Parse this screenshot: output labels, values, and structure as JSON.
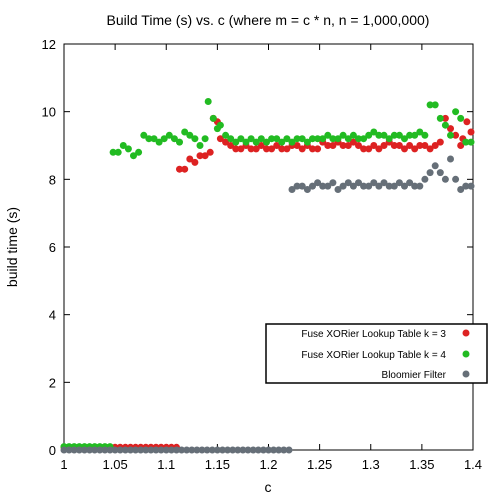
{
  "chart_data": {
    "type": "scatter",
    "title": "Build Time (s) vs. c (where m = c * n, n = 1,000,000)",
    "xlabel": "c",
    "ylabel": "build time (s)",
    "xlim": [
      1,
      1.4
    ],
    "ylim": [
      0,
      12
    ],
    "xticks": [
      "1",
      "1.05",
      "1.1",
      "1.15",
      "1.2",
      "1.25",
      "1.3",
      "1.35",
      "1.4"
    ],
    "yticks": [
      "0",
      "2",
      "4",
      "6",
      "8",
      "10",
      "12"
    ],
    "grid": false,
    "legend_position": "bottom-right",
    "series": [
      {
        "name": "Fuse XORier Lookup Table k = 3",
        "color": "#dd2222",
        "points": [
          [
            1.0,
            0.08
          ],
          [
            1.005,
            0.08
          ],
          [
            1.01,
            0.08
          ],
          [
            1.015,
            0.08
          ],
          [
            1.02,
            0.08
          ],
          [
            1.025,
            0.08
          ],
          [
            1.03,
            0.08
          ],
          [
            1.035,
            0.08
          ],
          [
            1.04,
            0.08
          ],
          [
            1.045,
            0.08
          ],
          [
            1.05,
            0.08
          ],
          [
            1.055,
            0.08
          ],
          [
            1.06,
            0.08
          ],
          [
            1.065,
            0.08
          ],
          [
            1.07,
            0.08
          ],
          [
            1.075,
            0.08
          ],
          [
            1.08,
            0.08
          ],
          [
            1.085,
            0.08
          ],
          [
            1.09,
            0.08
          ],
          [
            1.095,
            0.08
          ],
          [
            1.1,
            0.08
          ],
          [
            1.105,
            0.08
          ],
          [
            1.11,
            0.08
          ],
          [
            1.113,
            8.3
          ],
          [
            1.118,
            8.3
          ],
          [
            1.123,
            8.6
          ],
          [
            1.128,
            8.5
          ],
          [
            1.133,
            8.7
          ],
          [
            1.138,
            8.7
          ],
          [
            1.143,
            8.8
          ],
          [
            1.146,
            9.8
          ],
          [
            1.15,
            9.7
          ],
          [
            1.153,
            9.2
          ],
          [
            1.158,
            9.1
          ],
          [
            1.163,
            9.0
          ],
          [
            1.168,
            8.9
          ],
          [
            1.173,
            8.9
          ],
          [
            1.178,
            9.0
          ],
          [
            1.183,
            8.9
          ],
          [
            1.188,
            8.9
          ],
          [
            1.193,
            9.0
          ],
          [
            1.198,
            8.9
          ],
          [
            1.203,
            8.9
          ],
          [
            1.208,
            9.0
          ],
          [
            1.213,
            8.9
          ],
          [
            1.218,
            8.9
          ],
          [
            1.223,
            9.0
          ],
          [
            1.228,
            9.0
          ],
          [
            1.233,
            8.9
          ],
          [
            1.238,
            9.0
          ],
          [
            1.243,
            8.9
          ],
          [
            1.248,
            8.9
          ],
          [
            1.253,
            9.1
          ],
          [
            1.258,
            9.0
          ],
          [
            1.263,
            9.0
          ],
          [
            1.268,
            9.1
          ],
          [
            1.273,
            9.0
          ],
          [
            1.278,
            9.0
          ],
          [
            1.283,
            9.1
          ],
          [
            1.288,
            9.0
          ],
          [
            1.293,
            8.9
          ],
          [
            1.298,
            8.9
          ],
          [
            1.303,
            9.0
          ],
          [
            1.308,
            8.9
          ],
          [
            1.313,
            9.0
          ],
          [
            1.318,
            9.1
          ],
          [
            1.323,
            9.0
          ],
          [
            1.328,
            9.0
          ],
          [
            1.333,
            8.9
          ],
          [
            1.338,
            9.0
          ],
          [
            1.343,
            8.9
          ],
          [
            1.348,
            9.0
          ],
          [
            1.353,
            9.0
          ],
          [
            1.358,
            8.9
          ],
          [
            1.363,
            9.0
          ],
          [
            1.368,
            9.1
          ],
          [
            1.373,
            9.8
          ],
          [
            1.378,
            9.5
          ],
          [
            1.383,
            9.3
          ],
          [
            1.388,
            9.0
          ],
          [
            1.39,
            9.2
          ],
          [
            1.394,
            9.7
          ],
          [
            1.398,
            9.4
          ]
        ]
      },
      {
        "name": "Fuse XORier Lookup Table k = 4",
        "color": "#22bb22",
        "points": [
          [
            1.0,
            0.1
          ],
          [
            1.005,
            0.1
          ],
          [
            1.01,
            0.1
          ],
          [
            1.015,
            0.1
          ],
          [
            1.02,
            0.1
          ],
          [
            1.025,
            0.1
          ],
          [
            1.03,
            0.1
          ],
          [
            1.035,
            0.1
          ],
          [
            1.04,
            0.1
          ],
          [
            1.045,
            0.1
          ],
          [
            1.048,
            8.8
          ],
          [
            1.053,
            8.8
          ],
          [
            1.058,
            9.0
          ],
          [
            1.063,
            8.9
          ],
          [
            1.068,
            8.7
          ],
          [
            1.073,
            8.8
          ],
          [
            1.078,
            9.3
          ],
          [
            1.083,
            9.2
          ],
          [
            1.088,
            9.2
          ],
          [
            1.093,
            9.1
          ],
          [
            1.098,
            9.2
          ],
          [
            1.103,
            9.3
          ],
          [
            1.108,
            9.2
          ],
          [
            1.113,
            9.1
          ],
          [
            1.118,
            9.4
          ],
          [
            1.123,
            9.3
          ],
          [
            1.128,
            9.2
          ],
          [
            1.133,
            9.0
          ],
          [
            1.138,
            9.2
          ],
          [
            1.141,
            10.3
          ],
          [
            1.146,
            9.8
          ],
          [
            1.15,
            9.5
          ],
          [
            1.153,
            9.6
          ],
          [
            1.158,
            9.3
          ],
          [
            1.163,
            9.2
          ],
          [
            1.168,
            9.1
          ],
          [
            1.173,
            9.2
          ],
          [
            1.178,
            9.1
          ],
          [
            1.183,
            9.2
          ],
          [
            1.188,
            9.1
          ],
          [
            1.193,
            9.2
          ],
          [
            1.198,
            9.1
          ],
          [
            1.203,
            9.2
          ],
          [
            1.208,
            9.2
          ],
          [
            1.213,
            9.1
          ],
          [
            1.218,
            9.2
          ],
          [
            1.223,
            9.1
          ],
          [
            1.228,
            9.2
          ],
          [
            1.233,
            9.2
          ],
          [
            1.238,
            9.1
          ],
          [
            1.243,
            9.2
          ],
          [
            1.248,
            9.2
          ],
          [
            1.253,
            9.2
          ],
          [
            1.258,
            9.3
          ],
          [
            1.263,
            9.2
          ],
          [
            1.268,
            9.2
          ],
          [
            1.273,
            9.3
          ],
          [
            1.278,
            9.2
          ],
          [
            1.283,
            9.3
          ],
          [
            1.288,
            9.2
          ],
          [
            1.293,
            9.2
          ],
          [
            1.298,
            9.3
          ],
          [
            1.303,
            9.4
          ],
          [
            1.308,
            9.3
          ],
          [
            1.313,
            9.3
          ],
          [
            1.318,
            9.2
          ],
          [
            1.323,
            9.3
          ],
          [
            1.328,
            9.3
          ],
          [
            1.333,
            9.2
          ],
          [
            1.338,
            9.3
          ],
          [
            1.343,
            9.3
          ],
          [
            1.348,
            9.4
          ],
          [
            1.353,
            9.3
          ],
          [
            1.358,
            10.2
          ],
          [
            1.363,
            10.2
          ],
          [
            1.368,
            9.8
          ],
          [
            1.373,
            9.6
          ],
          [
            1.378,
            9.3
          ],
          [
            1.383,
            10.0
          ],
          [
            1.388,
            9.8
          ],
          [
            1.393,
            9.1
          ],
          [
            1.398,
            9.1
          ]
        ]
      },
      {
        "name": "Bloomier Filter",
        "color": "#666f78",
        "points": [
          [
            1.0,
            0.0
          ],
          [
            1.005,
            0.0
          ],
          [
            1.01,
            0.0
          ],
          [
            1.015,
            0.0
          ],
          [
            1.02,
            0.0
          ],
          [
            1.025,
            0.0
          ],
          [
            1.03,
            0.0
          ],
          [
            1.035,
            0.0
          ],
          [
            1.04,
            0.0
          ],
          [
            1.045,
            0.0
          ],
          [
            1.05,
            0.0
          ],
          [
            1.055,
            0.0
          ],
          [
            1.06,
            0.0
          ],
          [
            1.065,
            0.0
          ],
          [
            1.07,
            0.0
          ],
          [
            1.075,
            0.0
          ],
          [
            1.08,
            0.0
          ],
          [
            1.085,
            0.0
          ],
          [
            1.09,
            0.0
          ],
          [
            1.095,
            0.0
          ],
          [
            1.1,
            0.0
          ],
          [
            1.105,
            0.0
          ],
          [
            1.11,
            0.0
          ],
          [
            1.115,
            0.0
          ],
          [
            1.12,
            0.0
          ],
          [
            1.125,
            0.0
          ],
          [
            1.13,
            0.0
          ],
          [
            1.135,
            0.0
          ],
          [
            1.14,
            0.0
          ],
          [
            1.145,
            0.0
          ],
          [
            1.15,
            0.0
          ],
          [
            1.155,
            0.0
          ],
          [
            1.16,
            0.0
          ],
          [
            1.165,
            0.0
          ],
          [
            1.17,
            0.0
          ],
          [
            1.175,
            0.0
          ],
          [
            1.18,
            0.0
          ],
          [
            1.185,
            0.0
          ],
          [
            1.19,
            0.0
          ],
          [
            1.195,
            0.0
          ],
          [
            1.2,
            0.0
          ],
          [
            1.205,
            0.0
          ],
          [
            1.21,
            0.0
          ],
          [
            1.215,
            0.0
          ],
          [
            1.22,
            0.0
          ],
          [
            1.223,
            7.7
          ],
          [
            1.228,
            7.8
          ],
          [
            1.233,
            7.8
          ],
          [
            1.238,
            7.7
          ],
          [
            1.243,
            7.8
          ],
          [
            1.248,
            7.9
          ],
          [
            1.253,
            7.8
          ],
          [
            1.258,
            7.8
          ],
          [
            1.263,
            7.9
          ],
          [
            1.268,
            7.7
          ],
          [
            1.273,
            7.8
          ],
          [
            1.278,
            7.9
          ],
          [
            1.283,
            7.8
          ],
          [
            1.288,
            7.9
          ],
          [
            1.293,
            7.8
          ],
          [
            1.298,
            7.8
          ],
          [
            1.303,
            7.9
          ],
          [
            1.308,
            7.8
          ],
          [
            1.313,
            7.9
          ],
          [
            1.318,
            7.8
          ],
          [
            1.323,
            7.8
          ],
          [
            1.328,
            7.9
          ],
          [
            1.333,
            7.8
          ],
          [
            1.338,
            7.9
          ],
          [
            1.343,
            7.8
          ],
          [
            1.348,
            7.8
          ],
          [
            1.353,
            8.0
          ],
          [
            1.358,
            8.2
          ],
          [
            1.363,
            8.4
          ],
          [
            1.368,
            8.2
          ],
          [
            1.373,
            8.0
          ],
          [
            1.378,
            8.6
          ],
          [
            1.383,
            8.0
          ],
          [
            1.388,
            7.7
          ],
          [
            1.393,
            7.8
          ],
          [
            1.398,
            7.8
          ]
        ]
      }
    ]
  }
}
